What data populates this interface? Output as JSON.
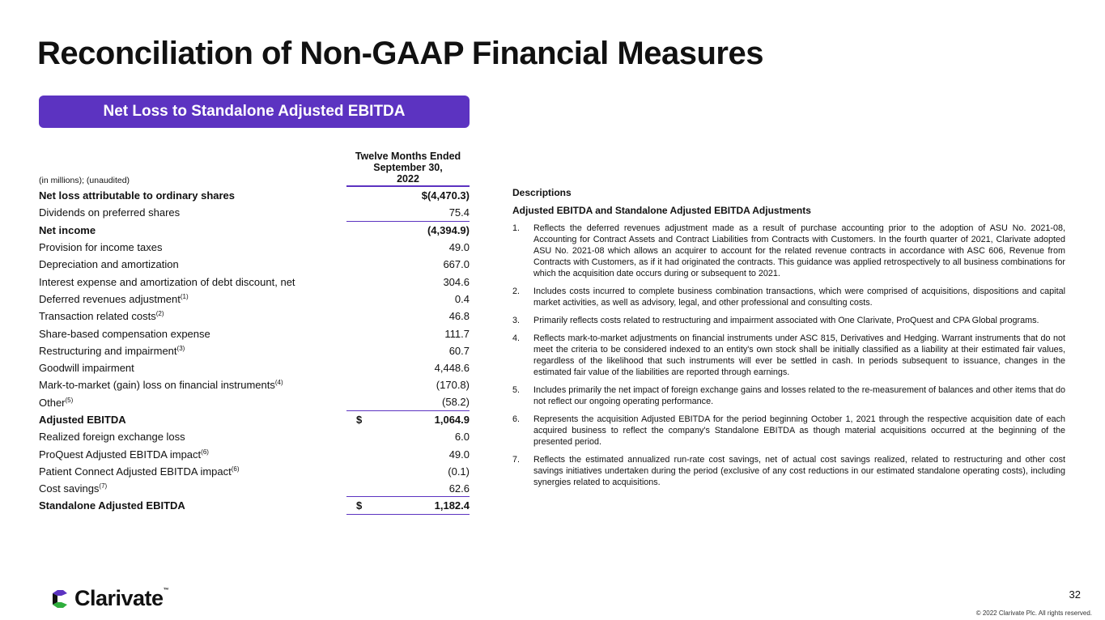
{
  "title": "Reconciliation of Non-GAAP Financial Measures",
  "banner": "Net Loss to Standalone Adjusted EBITDA",
  "table": {
    "unit_label": "(in millions); (unaudited)",
    "column_header": [
      "Twelve Months Ended",
      "September 30,",
      "2022"
    ],
    "rows": [
      {
        "label": "Net loss attributable to ordinary shares",
        "sup": "",
        "value": "$(4,470.3)",
        "currency": ""
      },
      {
        "label": "Dividends on preferred shares",
        "sup": "",
        "value": "75.4",
        "currency": ""
      },
      {
        "label": "Net income",
        "sup": "",
        "value": "(4,394.9)",
        "currency": ""
      },
      {
        "label": "Provision for income taxes",
        "sup": "",
        "value": "49.0",
        "currency": ""
      },
      {
        "label": "Depreciation and amortization",
        "sup": "",
        "value": "667.0",
        "currency": ""
      },
      {
        "label": "Interest expense and amortization of debt discount, net",
        "sup": "",
        "value": "304.6",
        "currency": ""
      },
      {
        "label": "Deferred revenues adjustment",
        "sup": "(1)",
        "value": "0.4",
        "currency": ""
      },
      {
        "label": "Transaction related costs",
        "sup": "(2)",
        "value": "46.8",
        "currency": ""
      },
      {
        "label": "Share-based compensation expense",
        "sup": "",
        "value": "111.7",
        "currency": ""
      },
      {
        "label": "Restructuring and impairment",
        "sup": "(3)",
        "value": "60.7",
        "currency": ""
      },
      {
        "label": "Goodwill impairment",
        "sup": "",
        "value": "4,448.6",
        "currency": ""
      },
      {
        "label": "Mark-to-market (gain) loss on financial instruments",
        "sup": "(4)",
        "value": "(170.8)",
        "currency": ""
      },
      {
        "label": "Other",
        "sup": "(5)",
        "value": "(58.2)",
        "currency": ""
      },
      {
        "label": "Adjusted EBITDA",
        "sup": "",
        "value": "1,064.9",
        "currency": "$"
      },
      {
        "label": "Realized foreign exchange loss",
        "sup": "",
        "value": "6.0",
        "currency": ""
      },
      {
        "label": "ProQuest Adjusted EBITDA impact",
        "sup": "(6)",
        "value": "49.0",
        "currency": ""
      },
      {
        "label": "Patient Connect Adjusted EBITDA impact",
        "sup": "(6)",
        "value": "(0.1)",
        "currency": ""
      },
      {
        "label": "Cost savings",
        "sup": "(7)",
        "value": "62.6",
        "currency": ""
      },
      {
        "label": "Standalone Adjusted EBITDA",
        "sup": "",
        "value": "1,182.4",
        "currency": "$"
      }
    ]
  },
  "notes": {
    "heading": "Descriptions",
    "subheading": "Adjusted EBITDA and Standalone Adjusted EBITDA Adjustments",
    "items": [
      {
        "n": "1.",
        "text": "Reflects the deferred revenues adjustment made as a result of purchase accounting prior to the adoption of ASU No. 2021-08, Accounting for Contract Assets and Contract Liabilities from Contracts with Customers. In the fourth quarter of 2021, Clarivate adopted ASU No. 2021-08 which allows an acquirer to account for the related revenue contracts in accordance with ASC 606, Revenue from Contracts with Customers, as if it had originated the contracts. This guidance was applied retrospectively to all business combinations for which the acquisition date occurs during or subsequent to 2021."
      },
      {
        "n": "2.",
        "text": "Includes costs incurred to complete business combination transactions, which were comprised of acquisitions, dispositions and capital market activities, as well as advisory, legal, and other professional and consulting costs."
      },
      {
        "n": "3.",
        "text": "Primarily reflects costs related to restructuring and impairment associated with One Clarivate, ProQuest and CPA Global programs."
      },
      {
        "n": "4.",
        "text": "Reflects mark-to-market adjustments on financial instruments under ASC 815, Derivatives and Hedging. Warrant instruments that do not meet the criteria to be considered indexed to an entity's own stock shall be initially classified as a liability at their estimated fair values, regardless of the likelihood that such instruments will ever be settled in cash. In periods subsequent to issuance, changes in the estimated fair value of the liabilities are reported through earnings."
      },
      {
        "n": "5.",
        "text": "Includes primarily the net impact of foreign exchange gains and losses related to the re-measurement of balances and other items that do not reflect our ongoing operating performance."
      },
      {
        "n": "6.",
        "text": "Represents the acquisition Adjusted EBITDA for the period beginning October 1, 2021 through the respective acquisition date of each acquired business to reflect the company's Standalone EBITDA as though material acquisitions occurred at the beginning of the presented period."
      },
      {
        "n": "7.",
        "text": "Reflects the estimated annualized run-rate cost savings, net of actual cost savings realized, related to restructuring and other cost savings initiatives undertaken during the period (exclusive of any cost reductions in our estimated standalone operating costs), including synergies related to acquisitions."
      }
    ]
  },
  "footer": {
    "logo": "Clarivate",
    "logo_tm": "™",
    "page_number": "32",
    "copyright": "© 2022 Clarivate Plc. All rights reserved."
  },
  "colors": {
    "accent": "#5c33c1"
  }
}
